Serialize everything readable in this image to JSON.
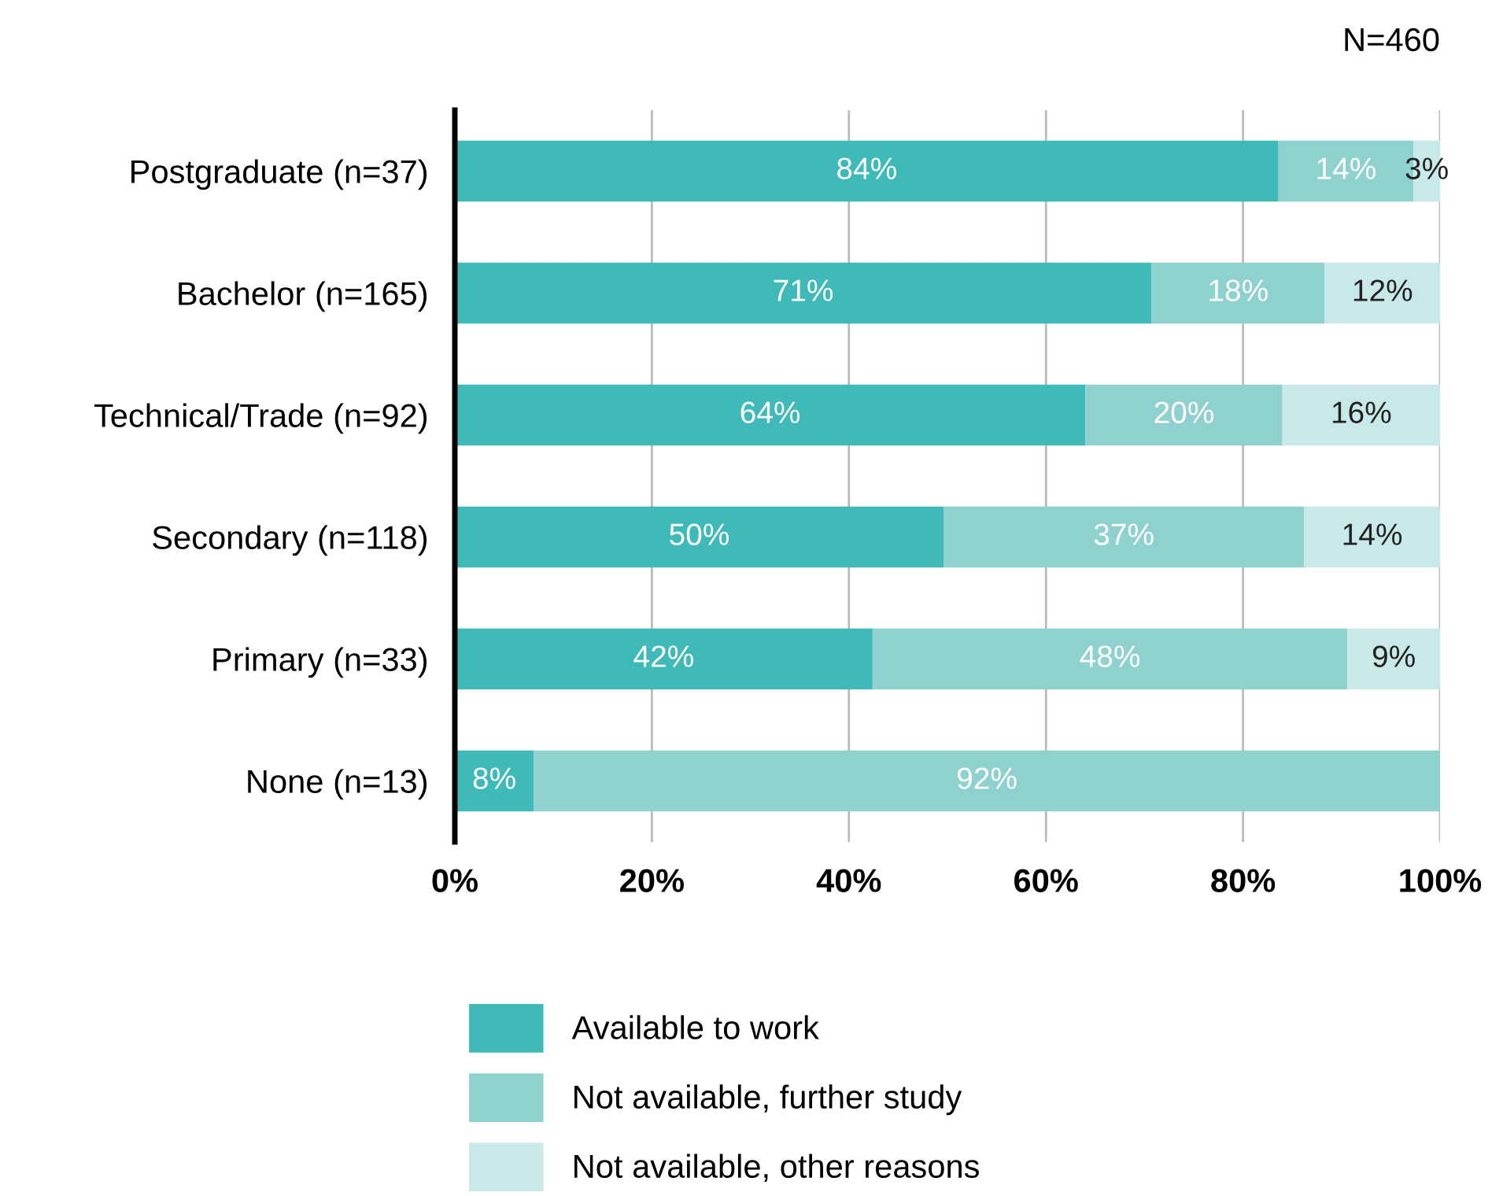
{
  "chart_data": {
    "type": "bar",
    "orientation": "horizontal",
    "stacked": true,
    "categories": [
      "Postgraduate (n=37)",
      "Bachelor (n=165)",
      "Technical/Trade (n=92)",
      "Secondary (n=118)",
      "Primary (n=33)",
      "None (n=13)"
    ],
    "series": [
      {
        "name": "Available to work",
        "color": "#40bab8",
        "values": [
          83.6,
          70.7,
          64,
          49.6,
          42.4,
          8
        ],
        "value_labels": [
          "84%",
          "71%",
          "64%",
          "50%",
          "42%",
          "8%"
        ]
      },
      {
        "name": "Not available, further study",
        "color": "#8fd1cf",
        "values": [
          13.7,
          17.6,
          20,
          36.6,
          48.2,
          92
        ],
        "value_labels": [
          "14%",
          "18%",
          "20%",
          "37%",
          "48%",
          "92%"
        ]
      },
      {
        "name": "Not available, other reasons",
        "color": "#c9e9e8",
        "values": [
          2.7,
          11.7,
          16,
          13.8,
          9.4,
          0
        ],
        "value_labels": [
          "3%",
          "12%",
          "16%",
          "14%",
          "9%",
          null
        ]
      }
    ],
    "xlim": [
      0,
      100
    ],
    "xticks": [
      {
        "value": 0,
        "label": "0%"
      },
      {
        "value": 20,
        "label": "20%"
      },
      {
        "value": 40,
        "label": "40%"
      },
      {
        "value": 60,
        "label": "60%"
      },
      {
        "value": 80,
        "label": "80%"
      },
      {
        "value": 100,
        "label": "100%"
      }
    ],
    "grid": "x",
    "legend": "bottom",
    "annotations": [
      "N=460"
    ]
  }
}
